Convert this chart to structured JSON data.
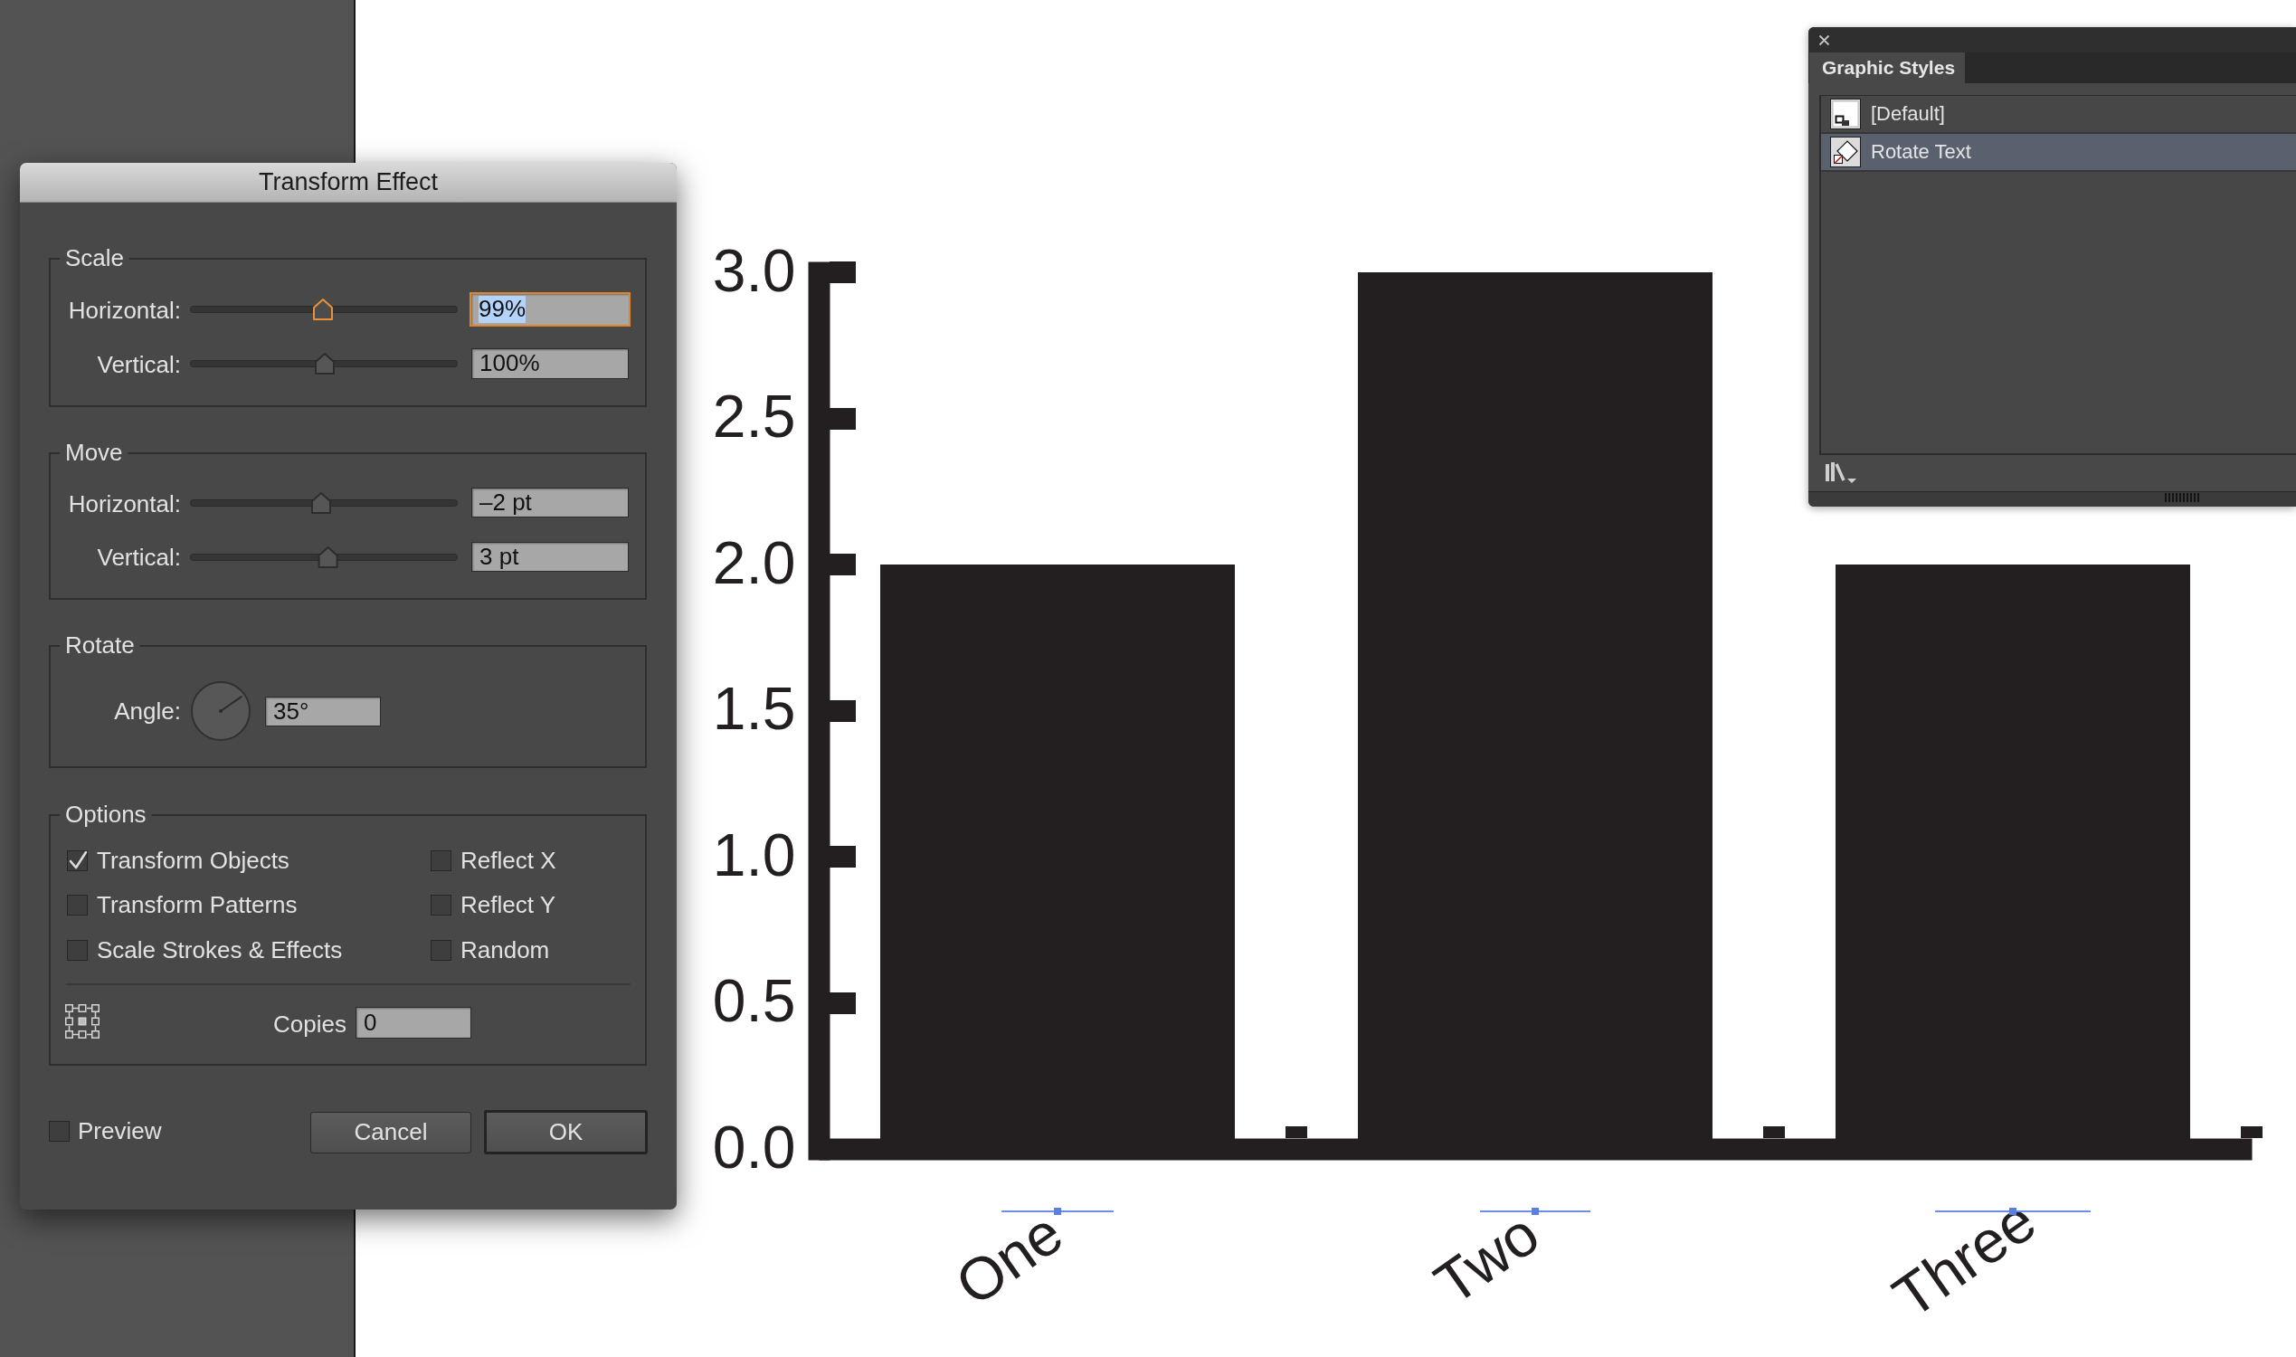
{
  "chart_data": [
    {
      "type": "bar",
      "categories": [
        "One",
        "Two",
        "Three"
      ],
      "values": [
        2,
        3,
        2
      ],
      "color": "#231f20",
      "ylim": [
        0,
        3
      ],
      "yticks": [
        {
          "value": 0,
          "label": "0.0"
        },
        0.5,
        {
          "value": 1,
          "label": "1.0"
        },
        1.5,
        {
          "value": 2,
          "label": "2.0"
        },
        2.5,
        {
          "value": 3,
          "label": "3.0"
        }
      ]
    },
    {
      "type": "other",
      "title": "Transform Effect",
      "annotations": [
        "Scale",
        "Horizontal:",
        "99%",
        "Vertical:",
        "100%",
        "Move",
        "Horizontal:",
        "–2 pt",
        "Vertical:",
        "3 pt",
        "Rotate",
        "Angle:",
        "35°",
        "Options",
        "Transform Objects",
        "Reflect X",
        "Transform Patterns",
        "Reflect Y",
        "Scale Strokes & Effects",
        "Random",
        "Copies",
        "0",
        "Preview",
        "Cancel",
        "OK"
      ]
    },
    {
      "type": "other",
      "title": "Graphic Styles",
      "annotations": [
        "[Default]",
        "Rotate Text"
      ]
    }
  ]
}
